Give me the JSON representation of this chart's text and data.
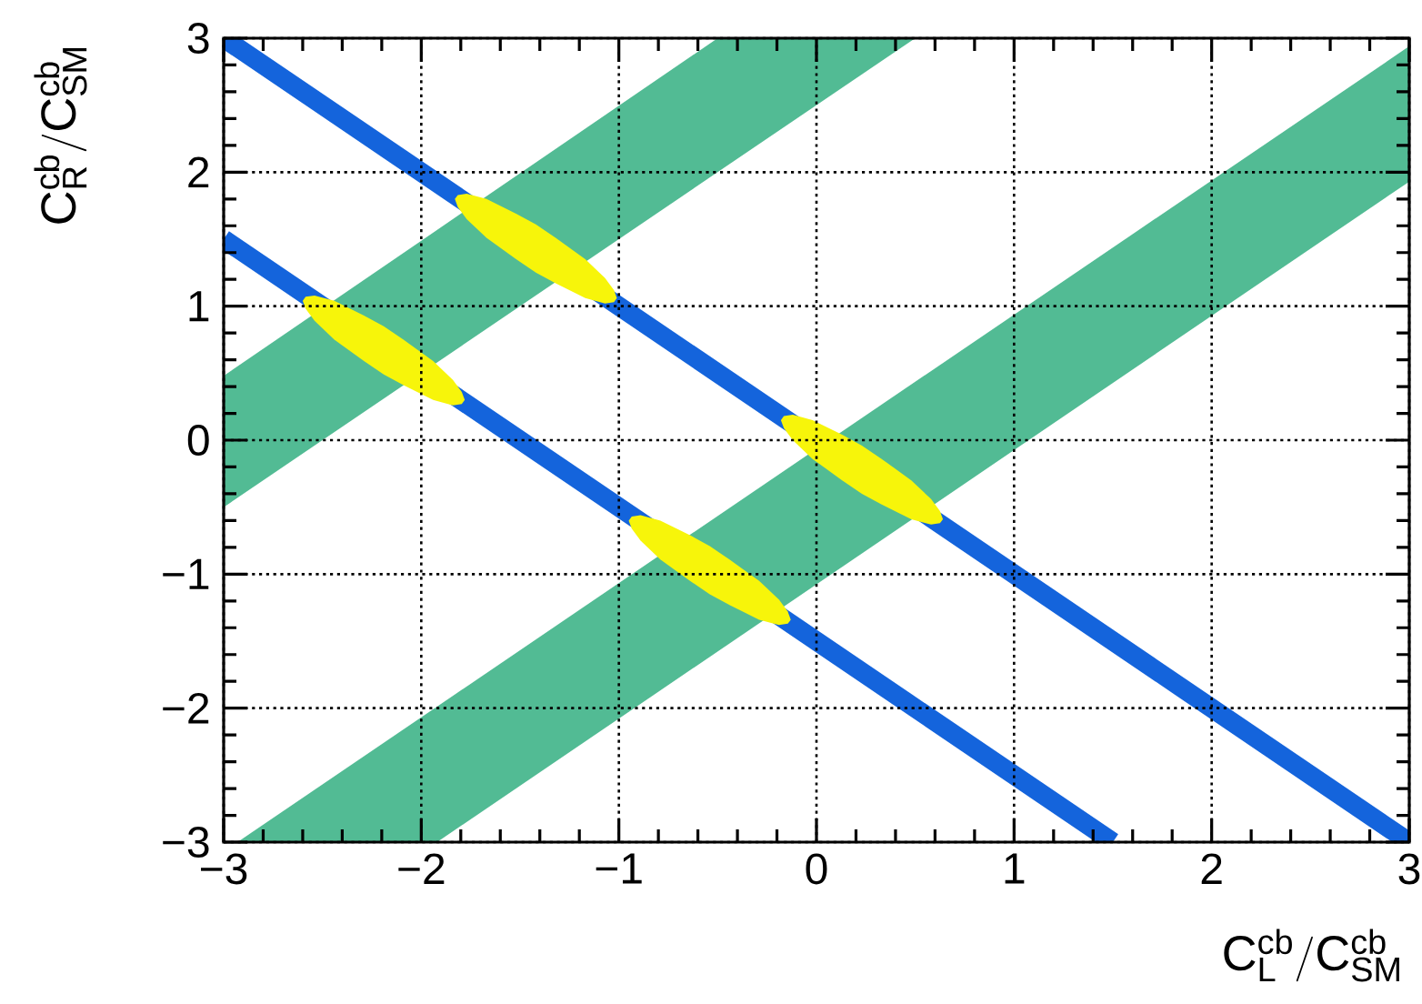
{
  "chart_data": {
    "type": "line",
    "xlabel": "\\mathrm{C^{cb}_{L}/C^{cb}_{SM}}",
    "ylabel": "\\mathrm{C^{cb}_{R}/C^{cb}_{SM}}",
    "xlim": [
      -3,
      3
    ],
    "ylim": [
      -3,
      3
    ],
    "xticks": [
      {
        "value": -3,
        "label": "−3"
      },
      {
        "value": -2,
        "label": "−2"
      },
      {
        "value": -1,
        "label": "−1"
      },
      0,
      1,
      2,
      3
    ],
    "yticks": [
      {
        "value": -3,
        "label": "−3"
      },
      {
        "value": -2,
        "label": "−2"
      },
      {
        "value": -1,
        "label": "−1"
      },
      0,
      1,
      2,
      3
    ],
    "grid": true,
    "series": [
      {
        "type": "area",
        "color": "#52bb94",
        "x": [
          -3,
          -0.5,
          0.5,
          -3
        ],
        "values": [
          0.48,
          3,
          3,
          -0.5
        ]
      },
      {
        "type": "area",
        "color": "#52bb94",
        "x": [
          -2.93,
          3,
          3,
          -1.92
        ],
        "values": [
          -3,
          2.94,
          1.93,
          -3
        ]
      },
      {
        "color": "#1464dc",
        "x": [
          -3,
          3
        ],
        "values": [
          3,
          -3
        ]
      },
      {
        "color": "#1464dc",
        "x": [
          -3,
          1.5
        ],
        "values": [
          1.5,
          -3
        ]
      },
      {
        "type": "area",
        "color": "#f7f50a",
        "x": [
          -1.83,
          -1.815,
          -1.77,
          -1.67,
          -1.52,
          -1.42,
          -1.32,
          -1.17,
          -1.07,
          -1.025,
          -1.01,
          -1.025,
          -1.07,
          -1.17,
          -1.32,
          -1.42,
          -1.52,
          -1.67,
          -1.77,
          -1.815
        ],
        "values": [
          1.8,
          1.83,
          1.84,
          1.8,
          1.69,
          1.61,
          1.51,
          1.35,
          1.21,
          1.12,
          1.06,
          1.03,
          1.02,
          1.06,
          1.17,
          1.25,
          1.35,
          1.51,
          1.65,
          1.74
        ]
      },
      {
        "type": "area",
        "color": "#f7f50a",
        "x": [
          -2.6,
          -2.585,
          -2.54,
          -2.44,
          -2.29,
          -2.19,
          -2.09,
          -1.94,
          -1.84,
          -1.795,
          -1.78,
          -1.795,
          -1.84,
          -1.94,
          -2.09,
          -2.19,
          -2.29,
          -2.44,
          -2.54,
          -2.585
        ],
        "values": [
          1.04,
          1.07,
          1.08,
          1.04,
          0.93,
          0.85,
          0.75,
          0.59,
          0.45,
          0.36,
          0.3,
          0.27,
          0.26,
          0.3,
          0.41,
          0.49,
          0.59,
          0.75,
          0.89,
          0.98
        ]
      },
      {
        "type": "area",
        "color": "#f7f50a",
        "x": [
          -0.18,
          -0.165,
          -0.12,
          -0.02,
          0.13,
          0.23,
          0.33,
          0.48,
          0.58,
          0.625,
          0.64,
          0.625,
          0.58,
          0.48,
          0.33,
          0.23,
          0.13,
          -0.02,
          -0.12,
          -0.165
        ],
        "values": [
          0.15,
          0.18,
          0.19,
          0.15,
          0.04,
          -0.04,
          -0.14,
          -0.3,
          -0.44,
          -0.53,
          -0.59,
          -0.62,
          -0.63,
          -0.59,
          -0.48,
          -0.4,
          -0.3,
          -0.14,
          0.0,
          0.09
        ]
      },
      {
        "type": "area",
        "color": "#f7f50a",
        "x": [
          -0.95,
          -0.935,
          -0.89,
          -0.79,
          -0.64,
          -0.54,
          -0.44,
          -0.29,
          -0.19,
          -0.145,
          -0.13,
          -0.145,
          -0.19,
          -0.29,
          -0.44,
          -0.54,
          -0.64,
          -0.79,
          -0.89,
          -0.935
        ],
        "values": [
          -0.6,
          -0.57,
          -0.56,
          -0.6,
          -0.71,
          -0.79,
          -0.89,
          -1.05,
          -1.19,
          -1.28,
          -1.34,
          -1.37,
          -1.38,
          -1.34,
          -1.23,
          -1.15,
          -1.05,
          -0.89,
          -0.75,
          -0.66
        ]
      }
    ]
  }
}
